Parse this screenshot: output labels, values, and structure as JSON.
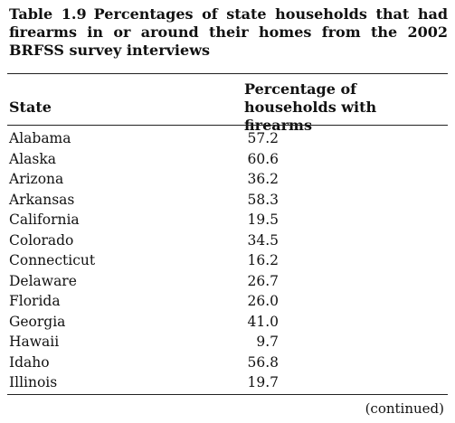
{
  "table": {
    "label": "Table 1.9",
    "title": "Percentages of state households that had firearms in or around their homes from the 2002 BRFSS survey interviews",
    "headers": {
      "state": "State",
      "percentage": "Percentage of households with firearms"
    },
    "rows": [
      {
        "state": "Alabama",
        "value": "57.2"
      },
      {
        "state": "Alaska",
        "value": "60.6"
      },
      {
        "state": "Arizona",
        "value": "36.2"
      },
      {
        "state": "Arkansas",
        "value": "58.3"
      },
      {
        "state": "California",
        "value": "19.5"
      },
      {
        "state": "Colorado",
        "value": "34.5"
      },
      {
        "state": "Connecticut",
        "value": "16.2"
      },
      {
        "state": "Delaware",
        "value": "26.7"
      },
      {
        "state": "Florida",
        "value": "26.0"
      },
      {
        "state": "Georgia",
        "value": "41.0"
      },
      {
        "state": "Hawaii",
        "value": "9.7"
      },
      {
        "state": "Idaho",
        "value": "56.8"
      },
      {
        "state": "Illinois",
        "value": "19.7"
      }
    ],
    "continued": "(continued)"
  }
}
